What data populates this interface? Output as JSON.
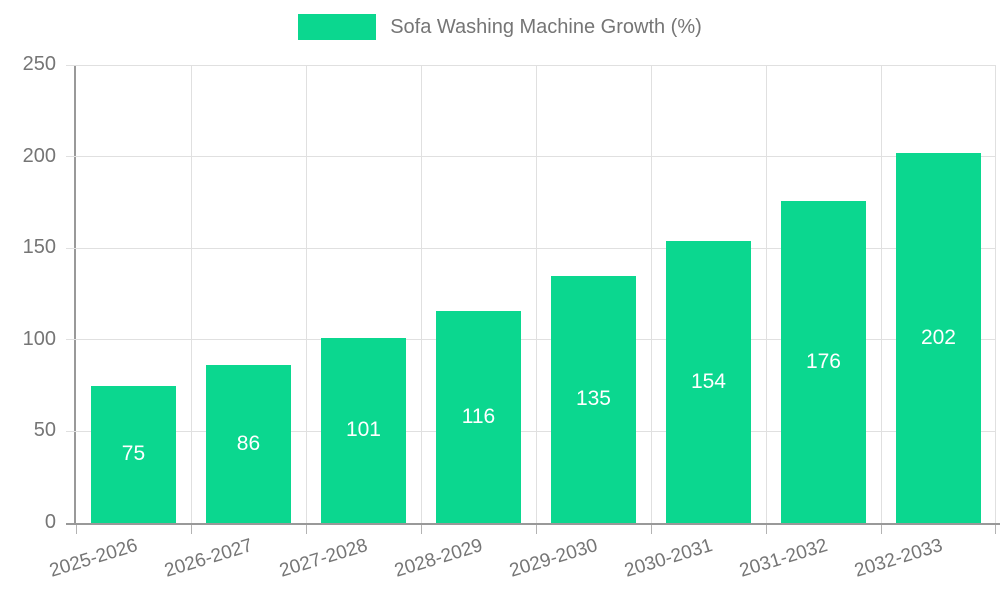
{
  "chart_data": {
    "type": "bar",
    "title": "",
    "legend": "Sofa Washing Machine Growth (%)",
    "legend_position": "top",
    "categories": [
      "2025-2026",
      "2026-2027",
      "2027-2028",
      "2028-2029",
      "2029-2030",
      "2030-2031",
      "2031-2032",
      "2032-2033"
    ],
    "values": [
      75,
      86,
      101,
      116,
      135,
      154,
      176,
      202
    ],
    "xlabel": "",
    "ylabel": "",
    "ylim": [
      0,
      250
    ],
    "yticks": [
      0,
      50,
      100,
      150,
      200,
      250
    ],
    "grid": true,
    "bar_labels_inside": true
  },
  "colors": {
    "bar": "#0bd78f",
    "axis": "#999999",
    "grid": "#e0e0e0",
    "tick": "#b3b3b3",
    "text": "#757575",
    "bar_label": "#ffffff",
    "background": "#ffffff"
  }
}
